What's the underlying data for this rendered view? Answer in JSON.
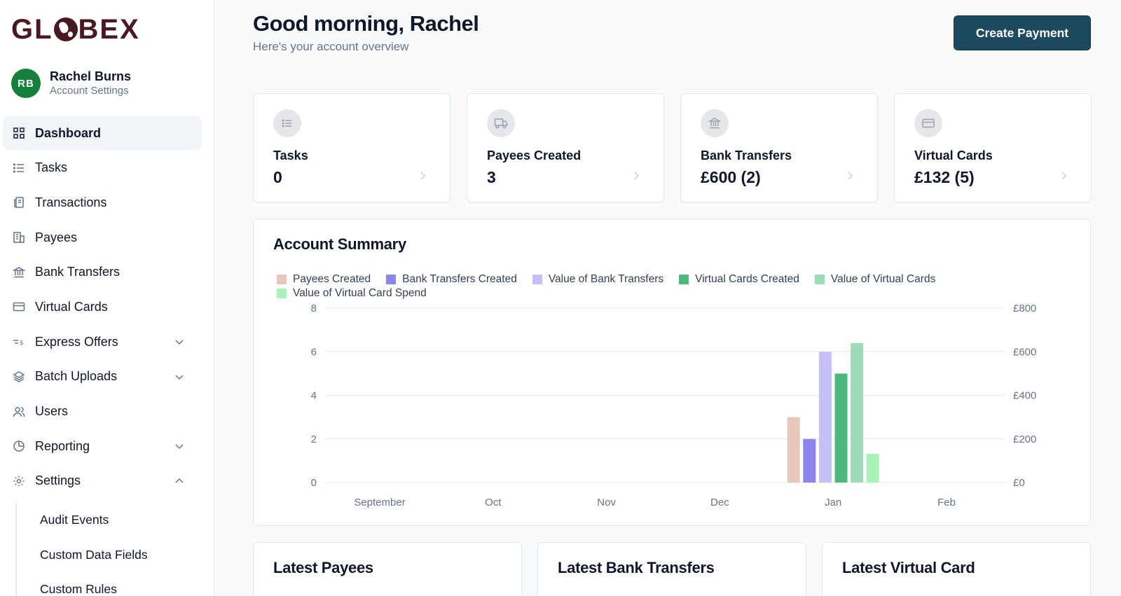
{
  "brand": {
    "logo_text": "GLOBEX"
  },
  "profile": {
    "initials": "RB",
    "name": "Rachel Burns",
    "subtitle": "Account Settings",
    "avatar_color": "#15803d"
  },
  "nav": {
    "items": [
      {
        "label": "Dashboard",
        "icon": "grid-icon",
        "active": true
      },
      {
        "label": "Tasks",
        "icon": "list-icon"
      },
      {
        "label": "Transactions",
        "icon": "receipt-icon"
      },
      {
        "label": "Payees",
        "icon": "building-icon"
      },
      {
        "label": "Bank Transfers",
        "icon": "bank-icon"
      },
      {
        "label": "Virtual Cards",
        "icon": "card-icon"
      },
      {
        "label": "Express Offers",
        "icon": "express-icon",
        "expandable": "collapsed"
      },
      {
        "label": "Batch Uploads",
        "icon": "layers-icon",
        "expandable": "collapsed"
      },
      {
        "label": "Users",
        "icon": "users-icon"
      },
      {
        "label": "Reporting",
        "icon": "pie-icon",
        "expandable": "collapsed"
      },
      {
        "label": "Settings",
        "icon": "gear-icon",
        "expandable": "expanded"
      }
    ],
    "settings_subitems": [
      "Audit Events",
      "Custom Data Fields",
      "Custom Rules"
    ]
  },
  "header": {
    "greeting": "Good morning, Rachel",
    "subtitle": "Here's your account overview",
    "create_button": "Create Payment",
    "button_color": "#1e4a5f"
  },
  "stats": [
    {
      "label": "Tasks",
      "value": "0",
      "icon": "list-icon"
    },
    {
      "label": "Payees Created",
      "value": "3",
      "icon": "truck-icon"
    },
    {
      "label": "Bank Transfers",
      "value": "£600 (2)",
      "icon": "bank-icon"
    },
    {
      "label": "Virtual Cards",
      "value": "£132 (5)",
      "icon": "card-icon"
    }
  ],
  "summary": {
    "title": "Account Summary"
  },
  "chart_data": {
    "type": "bar",
    "title": "Account Summary",
    "categories": [
      "September",
      "Oct",
      "Nov",
      "Dec",
      "Jan",
      "Feb"
    ],
    "ylim_left": [
      0,
      8
    ],
    "yticks_left": [
      "0",
      "2",
      "4",
      "6",
      "8"
    ],
    "ylim_right": [
      0,
      800
    ],
    "yticks_right": [
      "£0",
      "£200",
      "£400",
      "£600",
      "£800"
    ],
    "grid": true,
    "legend_position": "top-left",
    "series": [
      {
        "name": "Payees Created",
        "color": "#e7c7b9",
        "axis": "left",
        "values": [
          0,
          0,
          0,
          0,
          3,
          0
        ]
      },
      {
        "name": "Bank Transfers Created",
        "color": "#8b85ec",
        "axis": "left",
        "values": [
          0,
          0,
          0,
          0,
          2,
          0
        ]
      },
      {
        "name": "Value of Bank Transfers",
        "color": "#c4c0fa",
        "axis": "right",
        "values": [
          0,
          0,
          0,
          0,
          600,
          0
        ]
      },
      {
        "name": "Virtual Cards Created",
        "color": "#4cba7e",
        "axis": "left",
        "values": [
          0,
          0,
          0,
          0,
          5,
          0
        ]
      },
      {
        "name": "Value of Virtual Cards",
        "color": "#9ddbb9",
        "axis": "left",
        "values": [
          0,
          0,
          0,
          0,
          6.4,
          0
        ]
      },
      {
        "name": "Value of Virtual Card Spend",
        "color": "#a9f3b8",
        "axis": "right",
        "values": [
          0,
          0,
          0,
          0,
          132,
          0
        ]
      }
    ]
  },
  "bottom_cards": [
    "Latest Payees",
    "Latest Bank Transfers",
    "Latest Virtual Card"
  ]
}
